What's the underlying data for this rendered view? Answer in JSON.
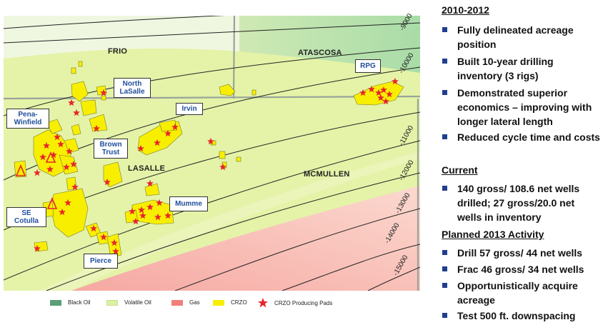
{
  "map": {
    "counties": {
      "frio": "FRIO",
      "atascosa": "ATASCOSA",
      "lasalle": "LASALLE",
      "mcmullen": "MCMULLEN"
    },
    "depth_contours": [
      "-9000",
      "-10000",
      "-11000",
      "-12000",
      "-13000",
      "-14000",
      "-15000"
    ],
    "callouts": {
      "north_lasalle": [
        "North",
        "LaSalle"
      ],
      "pena_winfield": [
        "Pena-",
        "Winfield"
      ],
      "irvin": "Irvin",
      "brown_trust": [
        "Brown",
        "Trust"
      ],
      "se_cotulla": [
        "SE",
        "Cotulla"
      ],
      "mumme": "Mumme",
      "pierce": "Pierce",
      "rpg": "RPG"
    },
    "colors": {
      "black_oil": "#5c9e77",
      "volatile_oil": "#dcf0a6",
      "gas": "#f0807a",
      "crzo": "#f8ef00",
      "producing_pad": "#e8242a"
    }
  },
  "legend": {
    "black_oil": "Black Oil",
    "volatile_oil": "Volatile Oil",
    "gas": "Gas",
    "crzo": "CRZO",
    "producing_pads": "CRZO Producing Pads"
  },
  "panel": {
    "sections": [
      {
        "heading": "2010-2012",
        "bullets": [
          "Fully delineated acreage position",
          "Built 10-year drilling inventory (3 rigs)",
          "Demonstrated superior economics – improving with longer lateral length",
          "Reduced cycle time and costs"
        ]
      },
      {
        "heading": "Current",
        "bullets": [
          "140 gross/ 108.6 net wells drilled; 27 gross/20.0 net wells in inventory"
        ]
      },
      {
        "heading": "Planned 2013 Activity",
        "bullets": [
          "Drill 57 gross/ 44 net wells",
          "Frac 46 gross/ 34 net wells",
          "Opportunistically acquire acreage",
          "Test 500 ft. downspacing"
        ]
      }
    ]
  }
}
